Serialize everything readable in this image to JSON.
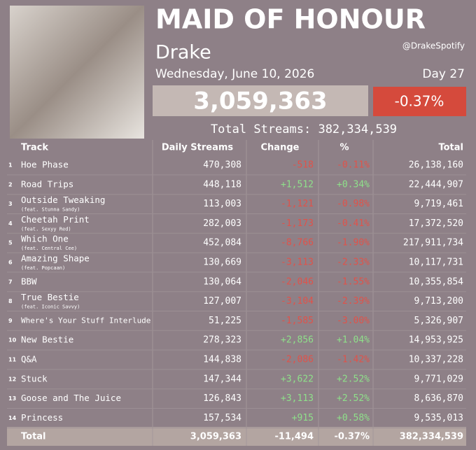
{
  "header": {
    "title": "MAID OF HONOUR",
    "artist": "Drake",
    "handle": "@DrakeSpotify",
    "date": "Wednesday, June 10, 2026",
    "day": "Day 27",
    "daily": "3,059,363",
    "change": "-0.37%",
    "total_streams": "Total Streams: 382,334,539"
  },
  "table": {
    "columns": [
      "Track",
      "Daily Streams",
      "Change",
      "%",
      "Total"
    ],
    "rows": [
      {
        "num": "1",
        "track": "Hoe Phase",
        "daily": "470,308",
        "change": "-518",
        "pct": "-0.11%",
        "total": "26,138,160"
      },
      {
        "num": "2",
        "track": "Road Trips",
        "daily": "448,118",
        "change": "+1,512",
        "pct": "+0.34%",
        "total": "22,444,907"
      },
      {
        "num": "3",
        "track": "Outside Tweaking",
        "feat": "(feat. Stunna Sandy)",
        "daily": "113,003",
        "change": "-1,121",
        "pct": "-0.98%",
        "total": "9,719,461"
      },
      {
        "num": "4",
        "track": "Cheetah Print",
        "feat": "(feat. Sexyy Red)",
        "daily": "282,003",
        "change": "-1,173",
        "pct": "-0.41%",
        "total": "17,372,520"
      },
      {
        "num": "5",
        "track": "Which One",
        "feat": "(feat. Central Cee)",
        "daily": "452,084",
        "change": "-8,766",
        "pct": "-1.90%",
        "total": "217,911,734"
      },
      {
        "num": "6",
        "track": "Amazing Shape",
        "feat": "(feat. Popcaan)",
        "daily": "130,669",
        "change": "-3,113",
        "pct": "-2.33%",
        "total": "10,117,731"
      },
      {
        "num": "7",
        "track": "BBW",
        "daily": "130,064",
        "change": "-2,046",
        "pct": "-1.55%",
        "total": "10,355,854"
      },
      {
        "num": "8",
        "track": "True Bestie",
        "feat": "(feat. Iconic Savvy)",
        "daily": "127,007",
        "change": "-3,104",
        "pct": "-2.39%",
        "total": "9,713,200"
      },
      {
        "num": "9",
        "track": "Where's Your Stuff Interlude",
        "daily": "51,225",
        "change": "-1,585",
        "pct": "-3.00%",
        "total": "5,326,907"
      },
      {
        "num": "10",
        "track": "New Bestie",
        "daily": "278,323",
        "change": "+2,856",
        "pct": "+1.04%",
        "total": "14,953,925"
      },
      {
        "num": "11",
        "track": "Q&A",
        "daily": "144,838",
        "change": "-2,086",
        "pct": "-1.42%",
        "total": "10,337,228"
      },
      {
        "num": "12",
        "track": "Stuck",
        "daily": "147,344",
        "change": "+3,622",
        "pct": "+2.52%",
        "total": "9,771,029"
      },
      {
        "num": "13",
        "track": "Goose and The Juice",
        "daily": "126,843",
        "change": "+3,113",
        "pct": "+2.52%",
        "total": "8,636,870"
      },
      {
        "num": "14",
        "track": "Princess",
        "daily": "157,534",
        "change": "+915",
        "pct": "+0.58%",
        "total": "9,535,013"
      }
    ],
    "totals": {
      "label": "Total",
      "daily": "3,059,363",
      "change": "-11,494",
      "pct": "-0.37%",
      "total": "382,334,539"
    }
  }
}
